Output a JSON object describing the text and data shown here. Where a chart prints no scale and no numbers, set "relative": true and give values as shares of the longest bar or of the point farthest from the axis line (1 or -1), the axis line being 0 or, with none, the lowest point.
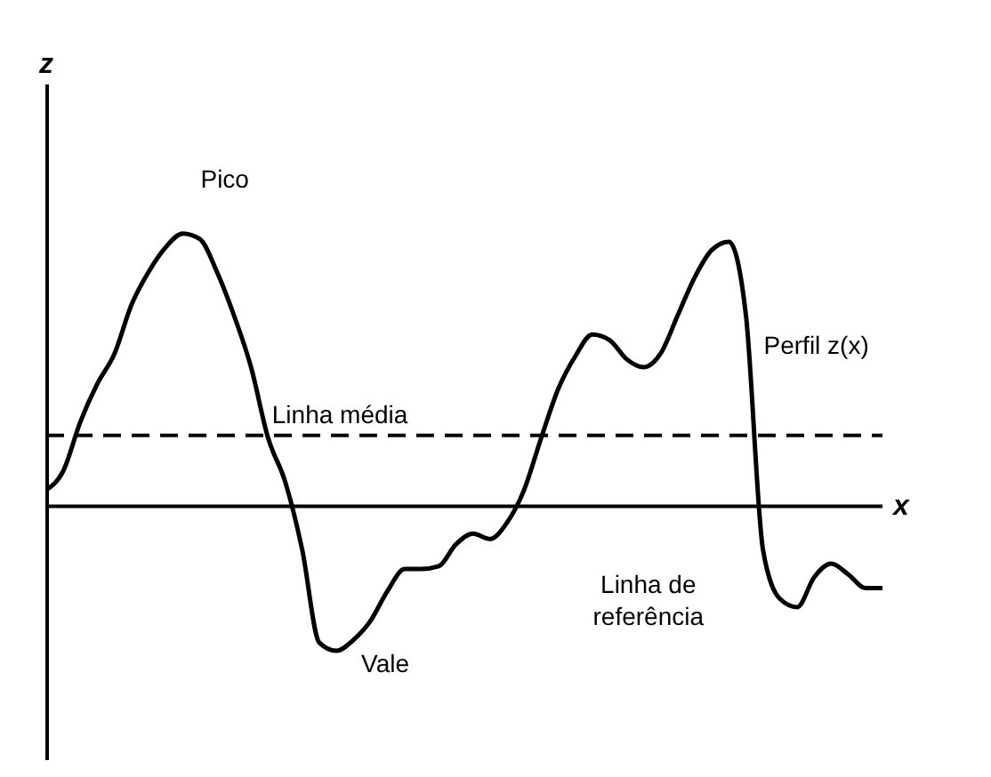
{
  "chart_data": {
    "type": "line",
    "relative": true,
    "xlabel": "x",
    "color": "#000000",
    "marker": "none",
    "line_style": "solid",
    "grid": false,
    "categories": [
      null,
      null,
      null,
      null,
      null,
      null,
      null,
      null,
      null,
      null,
      null,
      null,
      null,
      null,
      null,
      null,
      null,
      null,
      null,
      null,
      null,
      null,
      null,
      null,
      null,
      null,
      null,
      null,
      null,
      null,
      null,
      null,
      null,
      null,
      null,
      null,
      null,
      null,
      null,
      null,
      null,
      null,
      null,
      null,
      null,
      null,
      null,
      null,
      null,
      null
    ],
    "values": [
      0.06,
      0.13,
      0.31,
      0.45,
      0.56,
      0.74,
      0.86,
      0.95,
      1,
      0.98,
      0.86,
      0.7,
      0.51,
      0.25,
      0.09,
      -0.16,
      -0.5,
      -0.53,
      -0.49,
      -0.42,
      -0.31,
      -0.23,
      -0.23,
      -0.22,
      -0.14,
      -0.1,
      -0.12,
      -0.06,
      0.06,
      0.25,
      0.43,
      0.55,
      0.63,
      0.61,
      0.54,
      0.51,
      0.56,
      0.7,
      0.84,
      0.94,
      0.97,
      0.7,
      -0.16,
      -0.34,
      -0.37,
      -0.26,
      -0.21,
      -0.25,
      -0.3,
      -0.3
    ],
    "ref_lines": [
      {
        "axis": "y",
        "value": 0.26,
        "label": "Linha média",
        "line_style": "dashed"
      },
      {
        "axis": "y",
        "value": 0,
        "label": "Linha de referência",
        "line_style": "solid"
      }
    ],
    "annotations": [
      "Pico",
      "Vale",
      "Perfil z(x)",
      "z"
    ]
  }
}
